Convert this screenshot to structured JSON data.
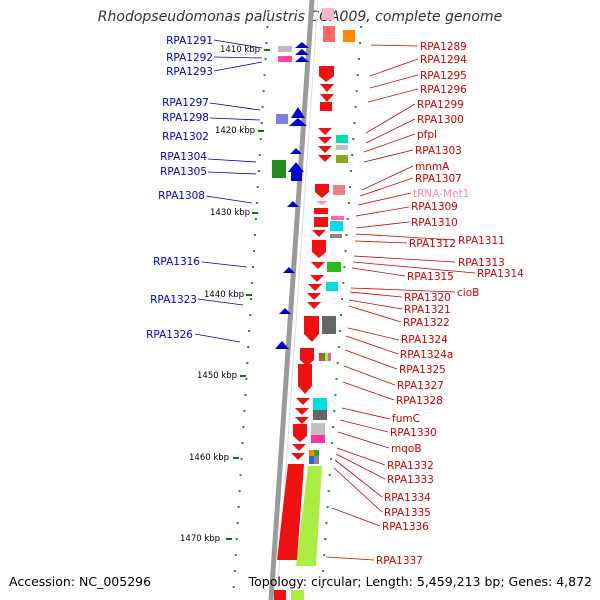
{
  "title": "Rhodopseudomonas palustris CGA009, complete genome",
  "footer": {
    "accession": "Accession: NC_005296",
    "summary": "Topology: circular; Length: 5,459,213 bp; Genes: 4,872"
  },
  "colors": {
    "left_label": "#0000cc",
    "right_label": "#cc0000",
    "trna_label": "#ff88aa",
    "axis": "#808080"
  },
  "ticks": [
    "1410 kbp",
    "1420 kbp",
    "1430 kbp",
    "1440 kbp",
    "1450 kbp",
    "1460 kbp",
    "1470 kbp"
  ],
  "left_genes": [
    "RPA1291",
    "RPA1292",
    "RPA1293",
    "RPA1297",
    "RPA1298",
    "RPA1302",
    "RPA1304",
    "RPA1305",
    "RPA1308",
    "RPA1316",
    "RPA1323",
    "RPA1326"
  ],
  "right_genes": [
    "RPA1289",
    "RPA1294",
    "RPA1295",
    "RPA1296",
    "RPA1299",
    "RPA1300",
    "pfpI",
    "RPA1303",
    "mnmA",
    "RPA1307",
    "tRNA-Met1",
    "RPA1309",
    "RPA1310",
    "RPA1311",
    "RPA1312",
    "RPA1313",
    "RPA1314",
    "RPA1315",
    "cioB",
    "RPA1320",
    "RPA1321",
    "RPA1322",
    "RPA1324",
    "RPA1324a",
    "RPA1325",
    "RPA1327",
    "RPA1328",
    "fumC",
    "RPA1330",
    "mqoB",
    "RPA1332",
    "RPA1333",
    "RPA1334",
    "RPA1335",
    "RPA1336",
    "RPA1337"
  ]
}
